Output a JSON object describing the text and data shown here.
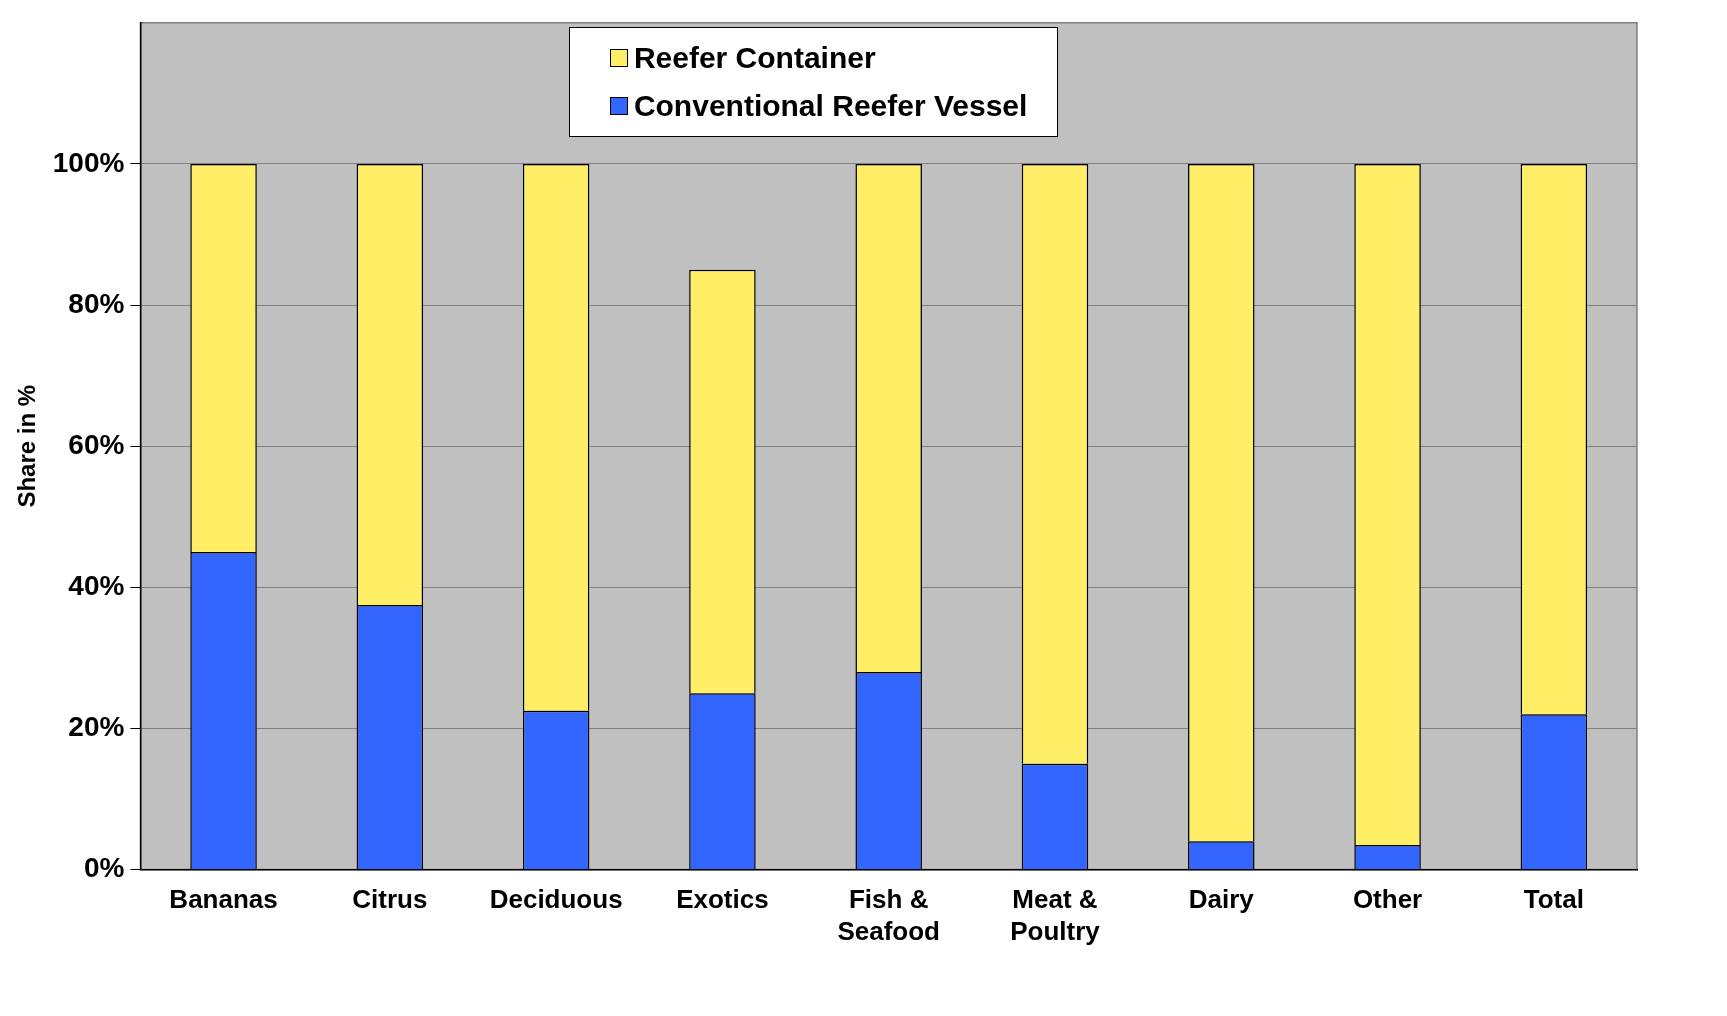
{
  "chart_data": {
    "type": "bar",
    "stacked": true,
    "ylabel": "Share in %",
    "categories": [
      "Bananas",
      "Citrus",
      "Deciduous",
      "Exotics",
      "Fish & Seafood",
      "Meat & Poultry",
      "Dairy",
      "Other",
      "Total"
    ],
    "series": [
      {
        "name": "Conventional Reefer Vessel",
        "color": "#3366ff",
        "values": [
          45,
          37.5,
          22.5,
          25,
          28,
          15,
          4,
          3.5,
          22
        ]
      },
      {
        "name": "Reefer Container",
        "color": "#ffee66",
        "values": [
          55,
          62.5,
          77.5,
          60,
          72,
          85,
          96,
          96.5,
          78
        ]
      }
    ],
    "ylim": [
      0,
      120
    ],
    "yticks": [
      {
        "value": 0,
        "label": "0%"
      },
      {
        "value": 20,
        "label": "20%"
      },
      {
        "value": 40,
        "label": "40%"
      },
      {
        "value": 60,
        "label": "60%"
      },
      {
        "value": 80,
        "label": "80%"
      },
      {
        "value": 100,
        "label": "100%"
      }
    ],
    "grid": "y",
    "legend": "top"
  }
}
